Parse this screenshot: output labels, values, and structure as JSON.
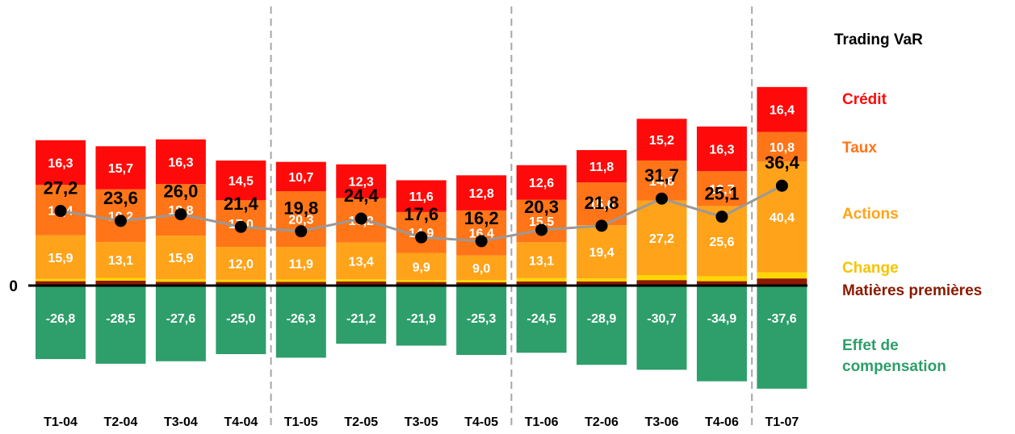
{
  "chart_data": {
    "type": "bar",
    "stacked": true,
    "categories": [
      "T1-04",
      "T2-04",
      "T3-04",
      "T4-04",
      "T1-05",
      "T2-05",
      "T3-05",
      "T4-05",
      "T1-06",
      "T2-06",
      "T3-06",
      "T4-06",
      "T1-07"
    ],
    "zero_label": "0",
    "series": [
      {
        "name": "Matières premières",
        "color": "#8B1A00",
        "text_color": "#8B1A00",
        "values": [
          1.6,
          1.8,
          1.4,
          1.3,
          1.4,
          1.5,
          1.3,
          1.2,
          1.5,
          1.5,
          2.0,
          1.6,
          2.6
        ],
        "labels": [
          "",
          "",
          "",
          "",
          "",
          "",
          "",
          "",
          "",
          "",
          "",
          "",
          ""
        ]
      },
      {
        "name": "Change",
        "color": "#FFD700",
        "text_color": "#F5C400",
        "values": [
          0.8,
          1.0,
          0.9,
          0.8,
          0.8,
          0.8,
          0.7,
          0.8,
          1.2,
          1.1,
          1.8,
          1.8,
          2.2
        ],
        "labels": [
          "",
          "",
          "",
          "",
          "",
          "",
          "",
          "",
          "",
          "",
          "",
          "",
          ""
        ]
      },
      {
        "name": "Actions",
        "color": "#FFA31A",
        "text_color": "#FFA31A",
        "values": [
          15.9,
          13.1,
          15.9,
          12.0,
          11.9,
          13.4,
          9.9,
          9.0,
          13.1,
          19.4,
          27.2,
          25.6,
          40.4
        ],
        "labels": [
          "15,9",
          "13,1",
          "15,9",
          "12,0",
          "11,9",
          "13,4",
          "9,9",
          "9,0",
          "13,1",
          "19,4",
          "27,2",
          "25,6",
          "40,4"
        ]
      },
      {
        "name": "Taux",
        "color": "#FF7518",
        "text_color": "#FF7518",
        "values": [
          18.4,
          19.2,
          18.8,
          17.0,
          20.3,
          16.2,
          14.9,
          16.4,
          15.5,
          15.6,
          14.6,
          12.7,
          10.8
        ],
        "labels": [
          "18,4",
          "19,2",
          "18,8",
          "17,0",
          "20,3",
          "16,2",
          "14,9",
          "16,4",
          "15,5",
          "15,6",
          "14,6",
          "12,7",
          "10,8"
        ]
      },
      {
        "name": "Crédit",
        "color": "#FF0A0A",
        "text_color": "#FF0A0A",
        "values": [
          16.3,
          15.7,
          16.3,
          14.5,
          10.7,
          12.3,
          11.6,
          12.8,
          12.6,
          11.8,
          15.2,
          16.3,
          16.4
        ],
        "labels": [
          "16,3",
          "15,7",
          "16,3",
          "14,5",
          "10,7",
          "12,3",
          "11,6",
          "12,8",
          "12,6",
          "11,8",
          "15,2",
          "16,3",
          "16,4"
        ]
      },
      {
        "name": "Effet de compensation",
        "name_lines": [
          "Effet de",
          "compensation"
        ],
        "color": "#2E9E6A",
        "text_color": "#2E9E6A",
        "values": [
          -26.8,
          -28.5,
          -27.6,
          -25.0,
          -26.3,
          -21.2,
          -21.9,
          -25.3,
          -24.5,
          -28.9,
          -30.7,
          -34.9,
          -37.6
        ],
        "labels": [
          "-26,8",
          "-28,5",
          "-27,6",
          "-25,0",
          "-26,3",
          "-21,2",
          "-21,9",
          "-25,3",
          "-24,5",
          "-28,9",
          "-30,7",
          "-34,9",
          "-37,6"
        ]
      }
    ],
    "line": {
      "name": "Trading VaR",
      "color": "#999999",
      "values": [
        27.2,
        23.6,
        26.0,
        21.4,
        19.8,
        24.4,
        17.6,
        16.2,
        20.3,
        21.8,
        31.7,
        25.1,
        36.4
      ],
      "labels": [
        "27,2",
        "23,6",
        "26,0",
        "21,4",
        "19,8",
        "24,4",
        "17,6",
        "16,2",
        "20,3",
        "21,8",
        "31,7",
        "25,1",
        "36,4"
      ]
    },
    "separators_after": [
      "T4-04",
      "T4-05",
      "T4-06"
    ],
    "legend_placement": "right",
    "grid": false
  }
}
